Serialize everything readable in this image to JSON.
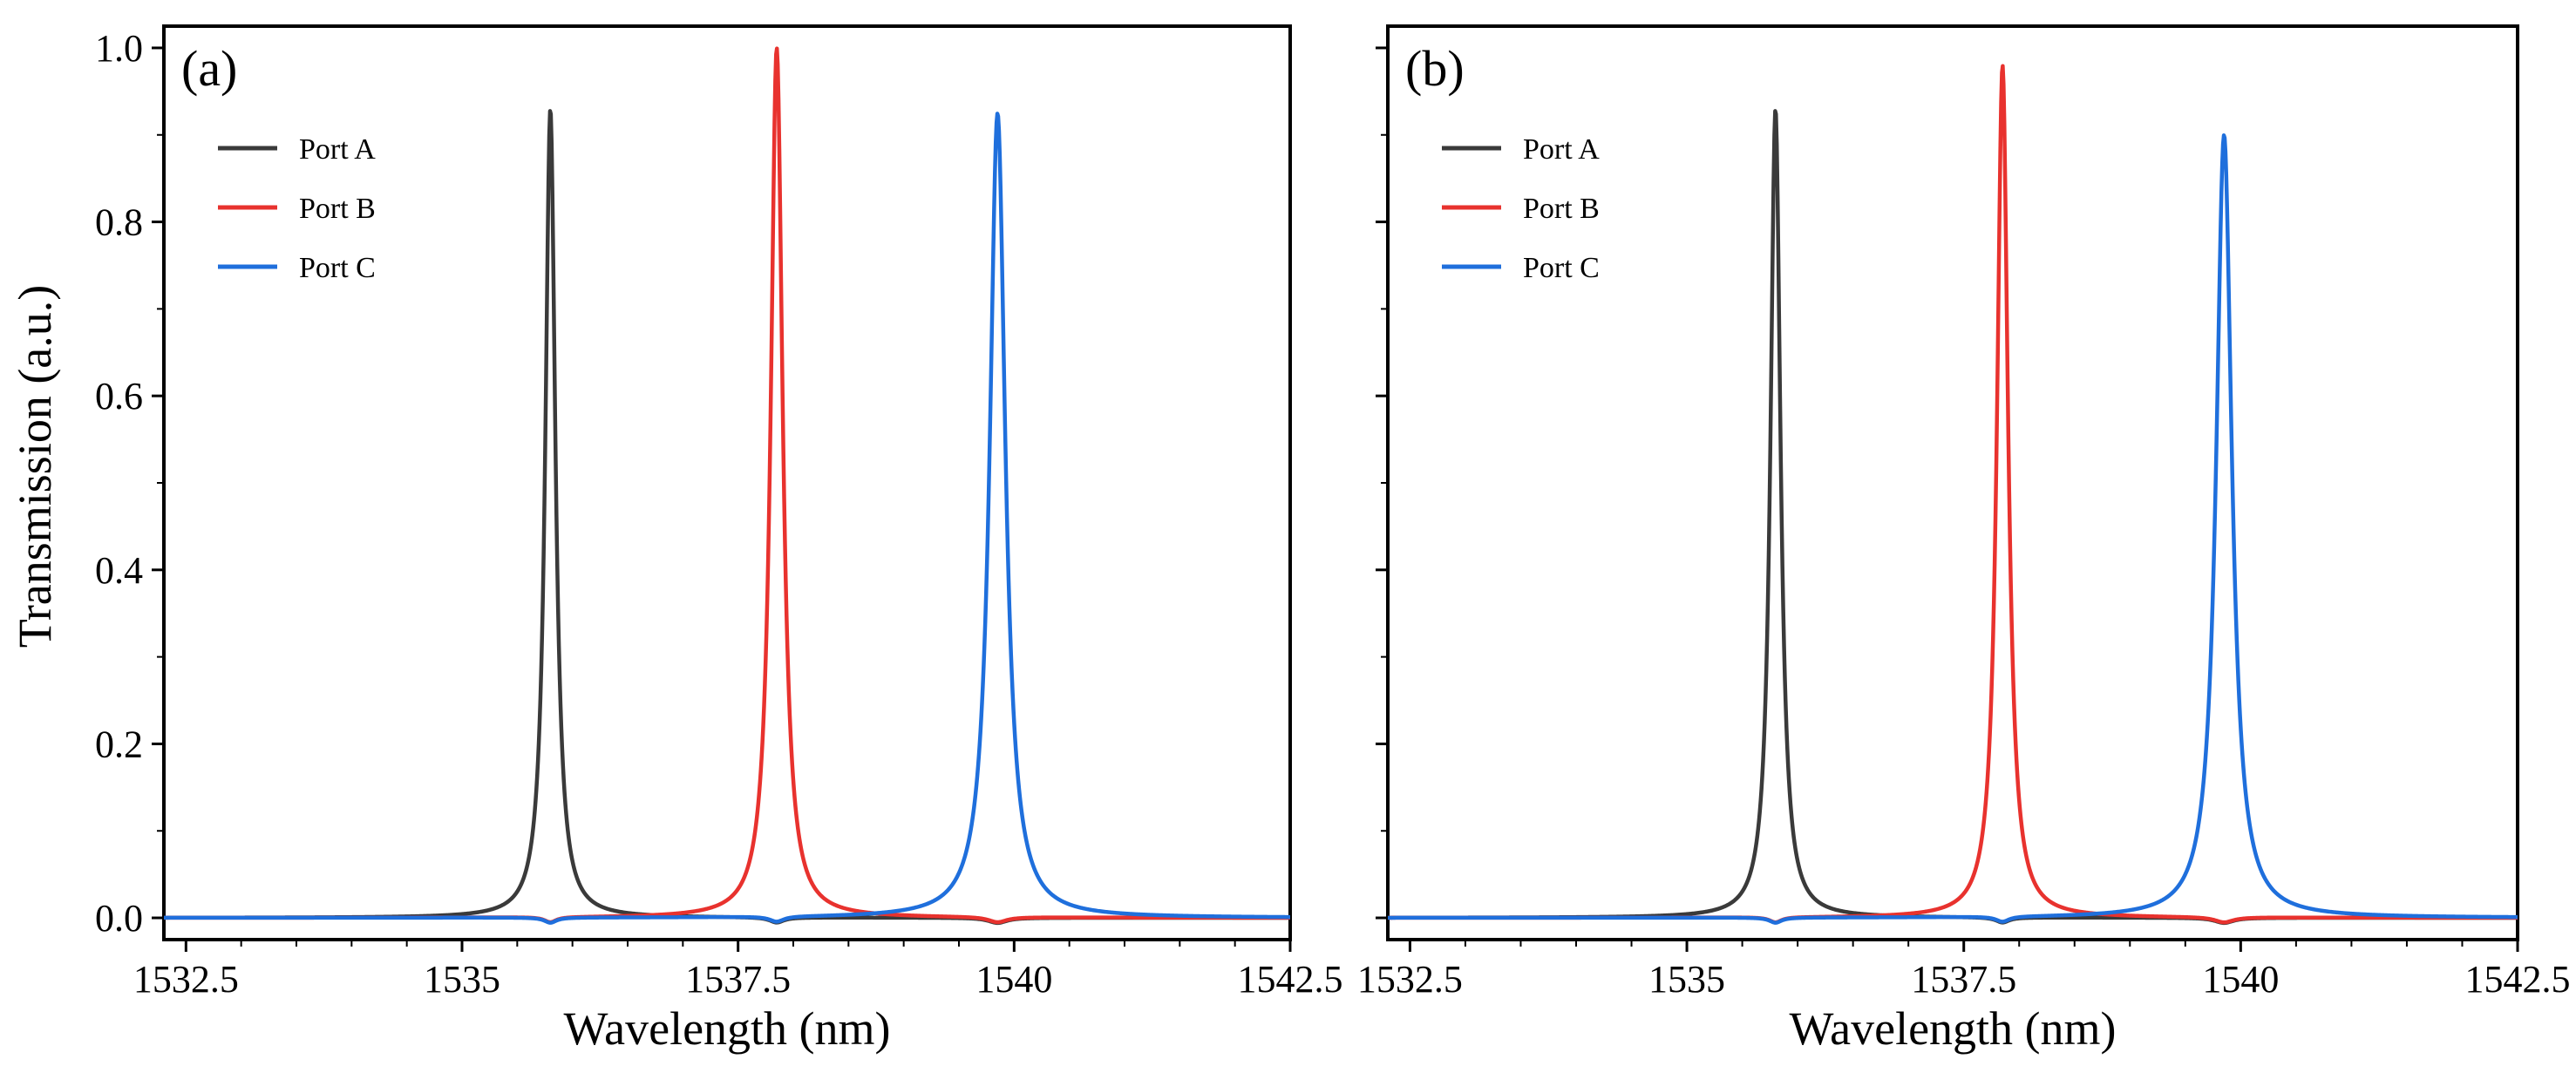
{
  "figure": {
    "ylabel": "Transmission (a.u.)"
  },
  "chart_data": [
    {
      "type": "line",
      "panel_label": "(a)",
      "xlabel": "Wavelength (nm)",
      "ylabel": "Transmission (a.u.)",
      "xlim": [
        1532.3,
        1542.5
      ],
      "ylim": [
        -0.025,
        1.025
      ],
      "x_ticks": [
        1532.5,
        1535,
        1537.5,
        1540,
        1542.5
      ],
      "x_tick_labels": [
        "1532.5",
        "1535",
        "1537.5",
        "1540",
        "1542.5"
      ],
      "y_ticks": [
        0.0,
        0.2,
        0.4,
        0.6,
        0.8,
        1.0
      ],
      "y_tick_labels": [
        "0.0",
        "0.2",
        "0.4",
        "0.6",
        "0.8",
        "1.0"
      ],
      "grid": false,
      "legend_position": "top-left",
      "series": [
        {
          "name": "Port A",
          "color": "#3a3a3a",
          "center": 1535.8,
          "peak": 0.93,
          "hwhm": 0.055
        },
        {
          "name": "Port B",
          "color": "#e8322e",
          "center": 1537.85,
          "peak": 1.0,
          "hwhm": 0.065
        },
        {
          "name": "Port C",
          "color": "#1f6fdc",
          "center": 1539.85,
          "peak": 0.925,
          "hwhm": 0.085
        }
      ]
    },
    {
      "type": "line",
      "panel_label": "(b)",
      "xlabel": "Wavelength (nm)",
      "ylabel": "",
      "xlim": [
        1532.3,
        1542.5
      ],
      "ylim": [
        -0.025,
        1.025
      ],
      "x_ticks": [
        1532.5,
        1535,
        1537.5,
        1540,
        1542.5
      ],
      "x_tick_labels": [
        "1532.5",
        "1535",
        "1537.5",
        "1540",
        "1542.5"
      ],
      "y_ticks": [
        0.0,
        0.2,
        0.4,
        0.6,
        0.8,
        1.0
      ],
      "y_tick_labels": [
        "",
        "",
        "",
        "",
        "",
        ""
      ],
      "grid": false,
      "legend_position": "top-left",
      "series": [
        {
          "name": "Port A",
          "color": "#3a3a3a",
          "center": 1535.8,
          "peak": 0.93,
          "hwhm": 0.055
        },
        {
          "name": "Port B",
          "color": "#e8322e",
          "center": 1537.85,
          "peak": 0.98,
          "hwhm": 0.06
        },
        {
          "name": "Port C",
          "color": "#1f6fdc",
          "center": 1539.85,
          "peak": 0.9,
          "hwhm": 0.085
        }
      ]
    }
  ]
}
